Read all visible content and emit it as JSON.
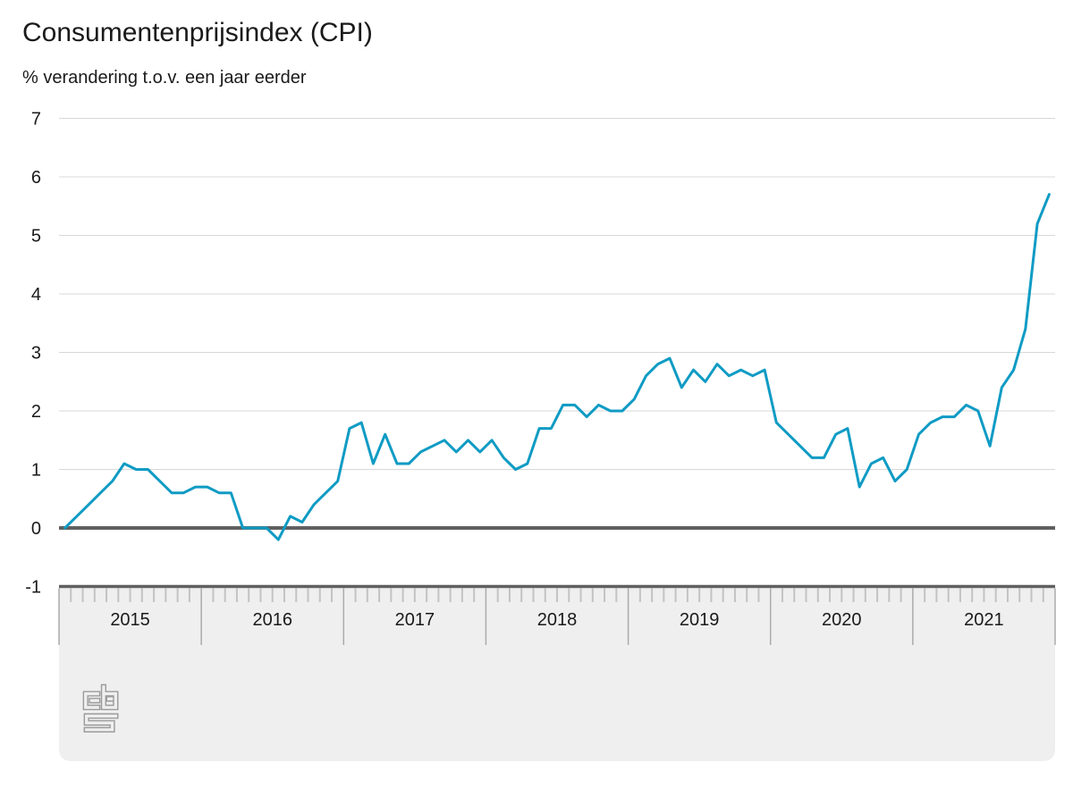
{
  "title": "Consumentenprijsindex (CPI)",
  "subtitle": "% verandering t.o.v. een jaar eerder",
  "branding": {
    "logo_name": "cbs-logo"
  },
  "colors": {
    "line": "#0f9bc4",
    "zero_line": "#606060",
    "gridline": "#d8d8d8",
    "band_background": "#efefef",
    "band_border": "#606060",
    "tick": "#c3c3c3",
    "year_separator": "#ababab",
    "text": "#1a1a1a",
    "logo": "#9b9b9b"
  },
  "y_axis": {
    "tick_labels": [
      "7",
      "6",
      "5",
      "4",
      "3",
      "2",
      "1",
      "0",
      "-1"
    ],
    "max": 7,
    "min": -1
  },
  "x_axis": {
    "year_labels": [
      "2015",
      "2016",
      "2017",
      "2018",
      "2019",
      "2020",
      "2021"
    ]
  },
  "chart_data": {
    "type": "line",
    "title": "Consumentenprijsindex (CPI)",
    "subtitle_unit": "% verandering t.o.v. een jaar eerder",
    "frequency": "monthly",
    "x_start": "2015-01",
    "x_end": "2021-12",
    "ylim": [
      -1,
      7
    ],
    "grid": true,
    "years": [
      "2015",
      "2016",
      "2017",
      "2018",
      "2019",
      "2020",
      "2021"
    ],
    "series": [
      {
        "name": "CPI, % verandering t.o.v. een jaar eerder",
        "values": [
          0.0,
          0.2,
          0.4,
          0.6,
          0.8,
          1.1,
          1.0,
          1.0,
          0.8,
          0.6,
          0.6,
          0.7,
          0.7,
          0.6,
          0.6,
          0.0,
          0.0,
          0.0,
          -0.2,
          0.2,
          0.1,
          0.4,
          0.6,
          0.8,
          1.7,
          1.8,
          1.1,
          1.6,
          1.1,
          1.1,
          1.3,
          1.4,
          1.5,
          1.3,
          1.5,
          1.3,
          1.5,
          1.2,
          1.0,
          1.1,
          1.7,
          1.7,
          2.1,
          2.1,
          1.9,
          2.1,
          2.0,
          2.0,
          2.2,
          2.6,
          2.8,
          2.9,
          2.4,
          2.7,
          2.5,
          2.8,
          2.6,
          2.7,
          2.6,
          2.7,
          1.8,
          1.6,
          1.4,
          1.2,
          1.2,
          1.6,
          1.7,
          0.7,
          1.1,
          1.2,
          0.8,
          1.0,
          1.6,
          1.8,
          1.9,
          1.9,
          2.1,
          2.0,
          1.4,
          2.4,
          2.7,
          3.4,
          5.2,
          5.7
        ]
      }
    ]
  }
}
